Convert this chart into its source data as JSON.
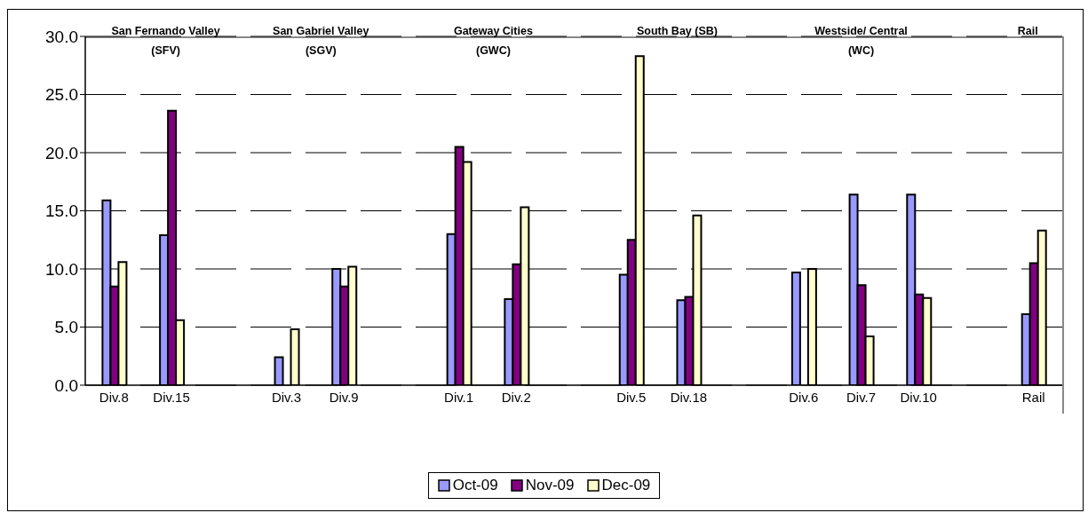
{
  "chart_data": {
    "type": "bar",
    "categories": [
      "Div.8",
      "Div.15",
      null,
      "Div.3",
      "Div.9",
      null,
      "Div.1",
      "Div.2",
      null,
      "Div.5",
      "Div.18",
      null,
      "Div.6",
      "Div.7",
      "Div.10",
      null,
      "Rail"
    ],
    "series": [
      {
        "name": "Oct-09",
        "color": "#9999ff",
        "values": [
          15.9,
          12.9,
          null,
          2.4,
          10.0,
          null,
          13.0,
          7.4,
          null,
          9.5,
          7.3,
          null,
          9.7,
          16.4,
          16.4,
          null,
          6.1
        ]
      },
      {
        "name": "Nov-09",
        "color": "#800080",
        "values": [
          8.5,
          23.6,
          null,
          null,
          8.5,
          null,
          20.5,
          10.4,
          null,
          12.5,
          7.6,
          null,
          null,
          8.6,
          7.8,
          null,
          10.5
        ]
      },
      {
        "name": "Dec-09",
        "color": "#ffffcc",
        "values": [
          10.6,
          5.6,
          null,
          4.8,
          10.2,
          null,
          19.2,
          15.3,
          null,
          28.3,
          14.6,
          null,
          10.0,
          4.2,
          7.5,
          null,
          13.3
        ]
      }
    ],
    "ylim": [
      0,
      30
    ],
    "yticks": [
      {
        "value": 0,
        "label": "0.0"
      },
      {
        "value": 5,
        "label": "5.0"
      },
      {
        "value": 10,
        "label": "10.0"
      },
      {
        "value": 15,
        "label": "15.0"
      },
      {
        "value": 20,
        "label": "20.0"
      },
      {
        "value": 25,
        "label": "25.0"
      },
      {
        "value": 30,
        "label": "30.0"
      }
    ],
    "grid": "y",
    "legend": "bottom",
    "annotations": [
      "San Fernando Valley (SFV)",
      "San Gabriel Valley (SGV)",
      "Gateway Cities (GWC)",
      "South Bay (SB)",
      "Westside/ Central (WC)",
      "Rail"
    ]
  }
}
